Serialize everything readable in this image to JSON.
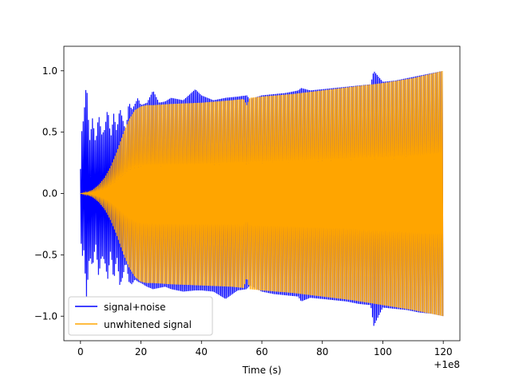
{
  "chart_data": {
    "type": "line",
    "title": "",
    "xlabel": "Time (s)",
    "ylabel": "",
    "x_offset_label": "+1e8",
    "xlim": [
      -5.5,
      125.5
    ],
    "ylim": [
      -1.2,
      1.2
    ],
    "xticks": [
      0,
      20,
      40,
      60,
      80,
      100,
      120
    ],
    "yticks": [
      -1.0,
      -0.5,
      0.0,
      0.5,
      1.0
    ],
    "xtick_labels": [
      "0",
      "20",
      "40",
      "60",
      "80",
      "100",
      "120"
    ],
    "ytick_labels": [
      "−1.0",
      "−0.5",
      "0.0",
      "0.5",
      "1.0"
    ],
    "grid": false,
    "legend_position": "lower-left",
    "series": [
      {
        "name": "signal+noise",
        "color": "#0000ff",
        "envelope_upper": {
          "x": [
            0,
            0.5,
            1,
            2,
            3,
            4,
            5,
            6,
            7,
            8,
            9,
            10,
            11,
            12,
            13,
            14,
            15,
            16,
            17,
            18,
            19,
            20,
            22,
            24,
            26,
            28,
            30,
            34,
            38,
            40,
            44,
            48,
            52,
            55,
            56,
            60,
            64,
            68,
            72,
            73,
            76,
            80,
            84,
            88,
            92,
            96,
            97,
            100,
            104,
            108,
            112,
            116,
            120
          ],
          "y": [
            0.2,
            0.55,
            0.6,
            0.92,
            0.42,
            0.62,
            0.4,
            0.65,
            0.48,
            0.52,
            0.7,
            0.45,
            0.65,
            0.5,
            0.7,
            0.6,
            0.5,
            0.75,
            0.68,
            0.73,
            0.78,
            0.72,
            0.74,
            0.84,
            0.74,
            0.75,
            0.78,
            0.76,
            0.85,
            0.8,
            0.76,
            0.78,
            0.79,
            0.8,
            0.77,
            0.8,
            0.81,
            0.82,
            0.84,
            0.86,
            0.84,
            0.85,
            0.86,
            0.87,
            0.88,
            0.89,
            1.0,
            0.91,
            0.92,
            0.94,
            0.96,
            0.98,
            1.0
          ]
        },
        "envelope_lower": {
          "x": [
            0,
            0.5,
            1,
            2,
            3,
            4,
            5,
            6,
            7,
            8,
            9,
            10,
            11,
            12,
            13,
            14,
            15,
            16,
            17,
            18,
            19,
            20,
            22,
            24,
            26,
            28,
            30,
            34,
            38,
            40,
            44,
            48,
            52,
            55,
            56,
            60,
            64,
            68,
            72,
            73,
            76,
            80,
            84,
            88,
            92,
            96,
            97,
            100,
            104,
            108,
            112,
            116,
            120
          ],
          "y": [
            -0.3,
            -0.55,
            -0.42,
            -0.85,
            -0.5,
            -0.6,
            -0.4,
            -0.68,
            -0.5,
            -0.55,
            -0.7,
            -0.45,
            -0.72,
            -0.5,
            -0.75,
            -0.68,
            -0.55,
            -0.72,
            -0.74,
            -0.7,
            -0.72,
            -0.73,
            -0.76,
            -0.78,
            -0.77,
            -0.76,
            -0.78,
            -0.8,
            -0.79,
            -0.79,
            -0.8,
            -0.86,
            -0.79,
            -0.78,
            -0.75,
            -0.8,
            -0.82,
            -0.83,
            -0.84,
            -0.88,
            -0.85,
            -0.86,
            -0.87,
            -0.88,
            -0.9,
            -0.91,
            -1.08,
            -0.93,
            -0.94,
            -0.95,
            -0.97,
            -0.98,
            -1.0
          ]
        }
      },
      {
        "name": "unwhitened signal",
        "color": "#ffa500",
        "envelope_upper": {
          "x": [
            0,
            2,
            4,
            6,
            8,
            10,
            12,
            14,
            16,
            18,
            20,
            22,
            24,
            30,
            40,
            50,
            54,
            55,
            56,
            60,
            70,
            80,
            90,
            100,
            110,
            120
          ],
          "y": [
            0.0,
            0.01,
            0.03,
            0.07,
            0.13,
            0.22,
            0.34,
            0.48,
            0.6,
            0.68,
            0.71,
            0.72,
            0.72,
            0.73,
            0.74,
            0.76,
            0.77,
            0.72,
            0.78,
            0.79,
            0.81,
            0.84,
            0.87,
            0.9,
            0.94,
            1.0
          ]
        },
        "envelope_lower": {
          "x": [
            0,
            2,
            4,
            6,
            8,
            10,
            12,
            14,
            16,
            18,
            20,
            22,
            24,
            30,
            40,
            50,
            54,
            55,
            56,
            60,
            70,
            80,
            90,
            100,
            110,
            120
          ],
          "y": [
            0.0,
            -0.01,
            -0.03,
            -0.07,
            -0.13,
            -0.22,
            -0.34,
            -0.48,
            -0.6,
            -0.68,
            -0.72,
            -0.73,
            -0.73,
            -0.74,
            -0.75,
            -0.76,
            -0.77,
            -0.68,
            -0.78,
            -0.79,
            -0.81,
            -0.84,
            -0.87,
            -0.91,
            -0.95,
            -1.0
          ]
        }
      }
    ]
  }
}
